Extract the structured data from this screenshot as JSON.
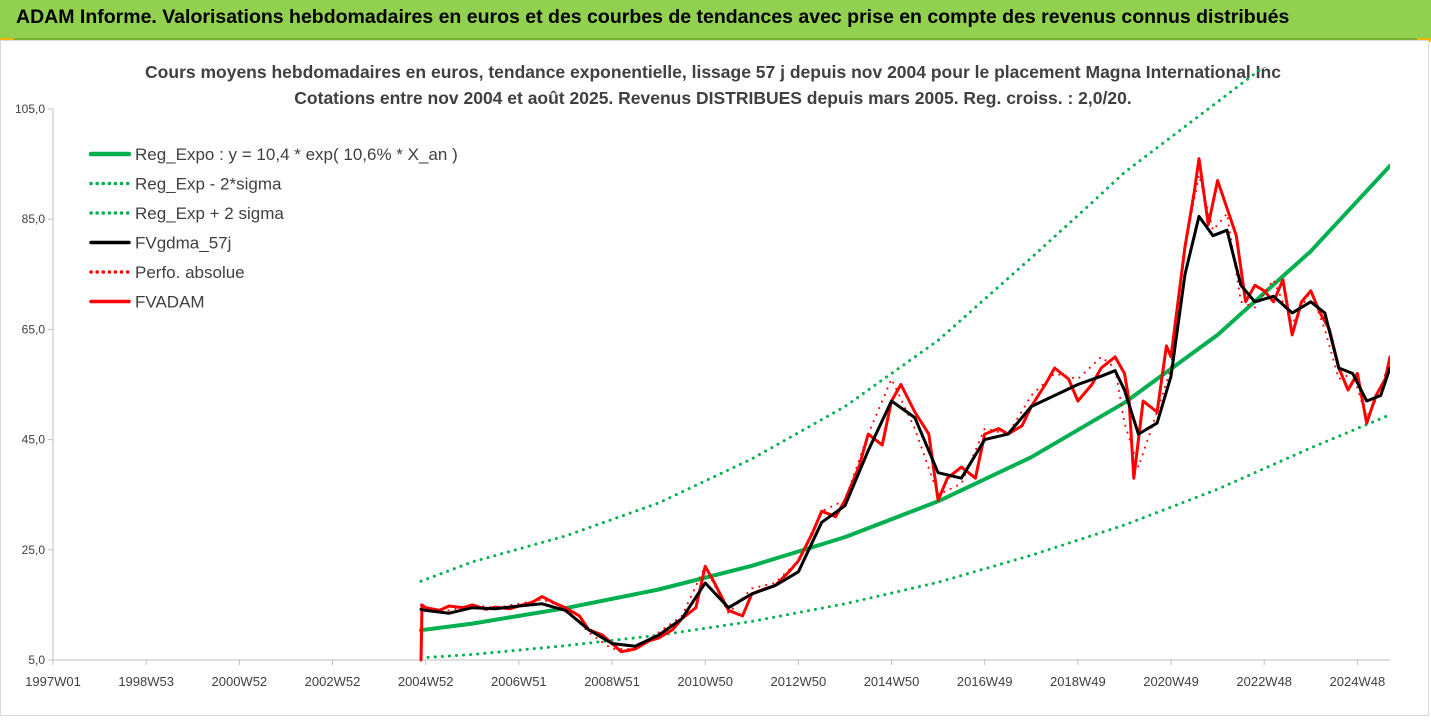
{
  "header": {
    "title": "ADAM Informe. Valorisations hebdomadaires en euros et des courbes de tendances avec prise en compte des revenus connus distribués"
  },
  "chart_data": {
    "type": "line",
    "title": "Cours moyens hebdomadaires en euros, tendance exponentielle, lissage 57 j depuis nov 2004 pour le placement Magna International Inc",
    "subtitle": "Cotations entre nov 2004 et août 2025. Revenus DISTRIBUES depuis mars 2005. Reg. croiss. : 2,0/20.",
    "ylim": [
      5,
      105
    ],
    "yticks": [
      5,
      25,
      45,
      65,
      85,
      105
    ],
    "ytick_labels": [
      "5,0",
      "25,0",
      "45,0",
      "65,0",
      "85,0",
      "105,0"
    ],
    "xlim": [
      1997.0,
      2025.7
    ],
    "xticks": [
      {
        "label": "1997W01",
        "t": 1997.0
      },
      {
        "label": "1998W53",
        "t": 1999.0
      },
      {
        "label": "2000W52",
        "t": 2001.0
      },
      {
        "label": "2002W52",
        "t": 2003.0
      },
      {
        "label": "2004W52",
        "t": 2005.0
      },
      {
        "label": "2006W51",
        "t": 2007.0
      },
      {
        "label": "2008W51",
        "t": 2009.0
      },
      {
        "label": "2010W50",
        "t": 2011.0
      },
      {
        "label": "2012W50",
        "t": 2013.0
      },
      {
        "label": "2014W50",
        "t": 2015.0
      },
      {
        "label": "2016W49",
        "t": 2017.0
      },
      {
        "label": "2018W49",
        "t": 2019.0
      },
      {
        "label": "2020W49",
        "t": 2021.0
      },
      {
        "label": "2022W48",
        "t": 2023.0
      },
      {
        "label": "2024W48",
        "t": 2025.0
      }
    ],
    "legend_position": "top-left",
    "grid": false,
    "series": [
      {
        "name": "Reg_Expo : y = 10,4 * exp( 10,6% *  X_an )",
        "color": "#00b050",
        "style": "solid",
        "x": [
          2004.9,
          2006,
          2008,
          2010,
          2012,
          2014,
          2016,
          2018,
          2020,
          2022,
          2024,
          2025.7
        ],
        "values": [
          10.4,
          11.6,
          14.4,
          17.8,
          22.1,
          27.3,
          33.8,
          41.8,
          51.7,
          64.0,
          79.2,
          94.7
        ]
      },
      {
        "name": "Reg_Exp - 2*sigma",
        "color": "#00b050",
        "style": "dotted",
        "x": [
          2004.9,
          2006,
          2008,
          2010,
          2012,
          2014,
          2016,
          2018,
          2020,
          2022,
          2024,
          2025.7
        ],
        "values": [
          5.4,
          6.0,
          7.6,
          9.5,
          12.0,
          15.2,
          19.1,
          24.0,
          29.5,
          36.0,
          43.5,
          49.5
        ]
      },
      {
        "name": "Reg_Exp + 2 sigma",
        "color": "#00b050",
        "style": "dotted",
        "x": [
          2004.9,
          2006,
          2008,
          2010,
          2012,
          2014,
          2016,
          2018,
          2019.3,
          2020,
          2025.7
        ],
        "values": [
          19.3,
          22.8,
          27.5,
          33.5,
          41.5,
          51.0,
          63.0,
          78.0,
          88.0,
          93.5,
          130.0
        ]
      },
      {
        "name": "FVgdma_57j",
        "color": "#000000",
        "style": "solid",
        "x": [
          2004.9,
          2005.0,
          2005.5,
          2006,
          2006.5,
          2007,
          2007.5,
          2008,
          2008.5,
          2009,
          2009.5,
          2010,
          2010.5,
          2011,
          2011.5,
          2012,
          2012.5,
          2013,
          2013.5,
          2014,
          2014.5,
          2015,
          2015.5,
          2016,
          2016.5,
          2017,
          2017.5,
          2018,
          2018.5,
          2019,
          2019.5,
          2019.8,
          2020,
          2020.3,
          2020.7,
          2021,
          2021.3,
          2021.6,
          2021.9,
          2022.2,
          2022.5,
          2022.8,
          2023.2,
          2023.6,
          2024,
          2024.3,
          2024.6,
          2024.9,
          2025.2,
          2025.5,
          2025.7
        ],
        "values": [
          14.2,
          14.0,
          13.5,
          14.5,
          14.3,
          14.8,
          15.2,
          14.0,
          10.5,
          8.0,
          7.5,
          9.5,
          12.5,
          19.0,
          14.5,
          17.0,
          18.5,
          21.0,
          30.0,
          33.0,
          43.0,
          52.0,
          49.0,
          39.0,
          38.0,
          45.0,
          46.0,
          51.0,
          53.0,
          55.0,
          56.5,
          57.5,
          54.0,
          46.0,
          48.0,
          56.5,
          75.0,
          85.5,
          82.0,
          83.0,
          73.0,
          70.0,
          71.0,
          68.0,
          70.0,
          68.0,
          58.0,
          57.0,
          52.0,
          53.0,
          58.0
        ]
      },
      {
        "name": "Perfo. absolue",
        "color": "#ff0000",
        "style": "dotted",
        "x": [
          2004.9,
          2005.0,
          2005.5,
          2006,
          2006.5,
          2007,
          2007.5,
          2008,
          2008.5,
          2009,
          2009.5,
          2010,
          2010.5,
          2011,
          2011.5,
          2012,
          2012.5,
          2013,
          2013.5,
          2014,
          2014.5,
          2015,
          2015.5,
          2016,
          2016.5,
          2017,
          2017.5,
          2018,
          2018.5,
          2019,
          2019.5,
          2019.8,
          2020,
          2020.3,
          2020.7,
          2021,
          2021.3,
          2021.6,
          2021.9,
          2022.2,
          2022.5,
          2022.8,
          2023.2,
          2023.6,
          2024,
          2024.3,
          2024.6,
          2024.9,
          2025.2,
          2025.5,
          2025.7
        ],
        "values": [
          15.0,
          14.5,
          14.0,
          15.0,
          14.5,
          15.2,
          16.0,
          14.5,
          10.0,
          7.0,
          7.0,
          10.0,
          13.0,
          22.0,
          13.5,
          18.0,
          19.0,
          23.0,
          32.0,
          34.0,
          46.0,
          56.0,
          47.0,
          35.0,
          37.0,
          47.0,
          46.0,
          53.0,
          57.0,
          56.0,
          60.0,
          58.0,
          48.0,
          40.0,
          50.0,
          58.0,
          80.0,
          93.0,
          83.0,
          86.0,
          70.0,
          69.0,
          74.0,
          66.0,
          72.0,
          65.0,
          56.0,
          57.0,
          49.0,
          54.0,
          60.0
        ]
      },
      {
        "name": "FVADAM",
        "color": "#ff0000",
        "style": "solid",
        "x": [
          2004.9,
          2004.92,
          2005.0,
          2005.3,
          2005.5,
          2005.8,
          2006,
          2006.3,
          2006.5,
          2006.8,
          2007,
          2007.3,
          2007.5,
          2007.8,
          2008,
          2008.3,
          2008.5,
          2008.8,
          2009,
          2009.2,
          2009.5,
          2009.8,
          2010,
          2010.3,
          2010.5,
          2010.8,
          2011,
          2011.2,
          2011.5,
          2011.8,
          2012,
          2012.3,
          2012.5,
          2012.8,
          2013,
          2013.3,
          2013.5,
          2013.8,
          2014,
          2014.3,
          2014.5,
          2014.8,
          2015,
          2015.2,
          2015.5,
          2015.8,
          2016,
          2016.2,
          2016.5,
          2016.8,
          2017,
          2017.3,
          2017.5,
          2017.8,
          2018,
          2018.3,
          2018.5,
          2018.8,
          2019,
          2019.3,
          2019.5,
          2019.8,
          2020,
          2020.1,
          2020.2,
          2020.4,
          2020.7,
          2020.9,
          2021,
          2021.3,
          2021.5,
          2021.6,
          2021.8,
          2022,
          2022.2,
          2022.4,
          2022.6,
          2022.8,
          2023,
          2023.2,
          2023.4,
          2023.6,
          2023.8,
          2024,
          2024.2,
          2024.4,
          2024.6,
          2024.8,
          2025,
          2025.2,
          2025.4,
          2025.6,
          2025.7
        ],
        "values": [
          5.0,
          15.0,
          14.5,
          14.0,
          14.8,
          14.5,
          15.0,
          14.2,
          14.6,
          14.3,
          14.8,
          15.5,
          16.5,
          15.2,
          14.5,
          13.0,
          10.5,
          9.5,
          8.0,
          6.5,
          7.0,
          8.5,
          9.0,
          10.5,
          12.5,
          14.5,
          22.0,
          19.0,
          14.0,
          13.0,
          17.0,
          18.0,
          18.5,
          21.0,
          23.0,
          28.0,
          32.0,
          31.0,
          34.0,
          40.0,
          46.0,
          44.0,
          52.0,
          55.0,
          50.0,
          46.0,
          34.0,
          38.0,
          40.0,
          38.0,
          46.0,
          47.0,
          46.0,
          47.5,
          51.0,
          55.0,
          58.0,
          56.0,
          52.0,
          55.0,
          58.0,
          60.0,
          57.0,
          52.0,
          38.0,
          52.0,
          50.0,
          62.0,
          60.0,
          80.0,
          90.0,
          96.0,
          84.0,
          92.0,
          87.0,
          82.0,
          70.0,
          73.0,
          72.0,
          70.0,
          74.0,
          64.0,
          70.0,
          72.0,
          68.0,
          65.0,
          58.0,
          54.0,
          57.0,
          48.0,
          53.0,
          56.0,
          60.0
        ]
      }
    ]
  }
}
